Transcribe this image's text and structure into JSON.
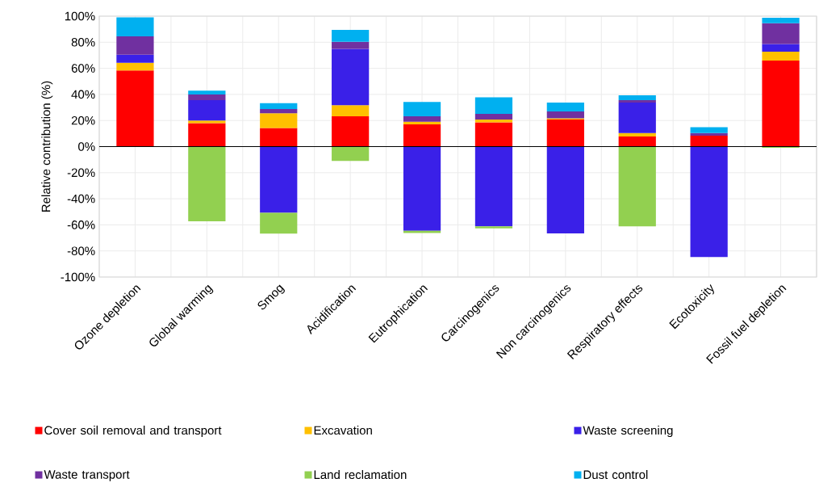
{
  "chart_data": {
    "type": "bar",
    "stacked": true,
    "ylabel": "Relative contribution (%)",
    "categories": [
      "Ozone depletion",
      "Global warming",
      "Smog",
      "Acidification",
      "Eutrophication",
      "Carcinogenics",
      "Non carcinogenics",
      "Respiratory effects",
      "Ecotoxicity",
      "Fossil fuel depletion"
    ],
    "series": [
      {
        "name": "Cover soil removal and transport",
        "color": "#ff0000",
        "values": [
          58.4,
          18,
          14.3,
          23.2,
          17,
          18.6,
          20.7,
          7.7,
          8.3,
          66
        ]
      },
      {
        "name": "Excavation",
        "color": "#ffc000",
        "values": [
          5.8,
          1.9,
          11.2,
          8.5,
          2,
          2.1,
          1,
          2.7,
          null,
          6.7
        ]
      },
      {
        "name": "Waste screening",
        "color": "#3a20e8",
        "values": [
          6.2,
          15.7,
          -50.7,
          43.2,
          -64.6,
          -61.1,
          -66.5,
          23.3,
          -84.7,
          6
        ]
      },
      {
        "name": "Waste transport",
        "color": "#7030a0",
        "values": [
          14.1,
          4.4,
          3.3,
          5.4,
          4.2,
          4.4,
          5.2,
          1.9,
          2.1,
          15.9
        ]
      },
      {
        "name": "Land reclamation",
        "color": "#92d050",
        "values": [
          null,
          -57.3,
          -16,
          -11,
          -1.7,
          -1.6,
          null,
          -61.1,
          null,
          -1
        ]
      },
      {
        "name": "Dust control",
        "color": "#00b0f0",
        "values": [
          14.5,
          2.9,
          4.5,
          9.1,
          11,
          12.6,
          6.8,
          3.7,
          4.5,
          4.2
        ]
      }
    ],
    "ylim": [
      -100,
      100
    ],
    "yticks": [
      {
        "value": -100,
        "label": "-100%"
      },
      {
        "value": -80,
        "label": "-80%"
      },
      {
        "value": -60,
        "label": "-60%"
      },
      {
        "value": -40,
        "label": "-40%"
      },
      {
        "value": -20,
        "label": "-20%"
      },
      {
        "value": 0,
        "label": "0%"
      },
      {
        "value": 20,
        "label": "20%"
      },
      {
        "value": 40,
        "label": "40%"
      },
      {
        "value": 60,
        "label": "60%"
      },
      {
        "value": 80,
        "label": "80%"
      },
      {
        "value": 100,
        "label": "100%"
      }
    ],
    "grid": true,
    "legend": "bottom"
  }
}
